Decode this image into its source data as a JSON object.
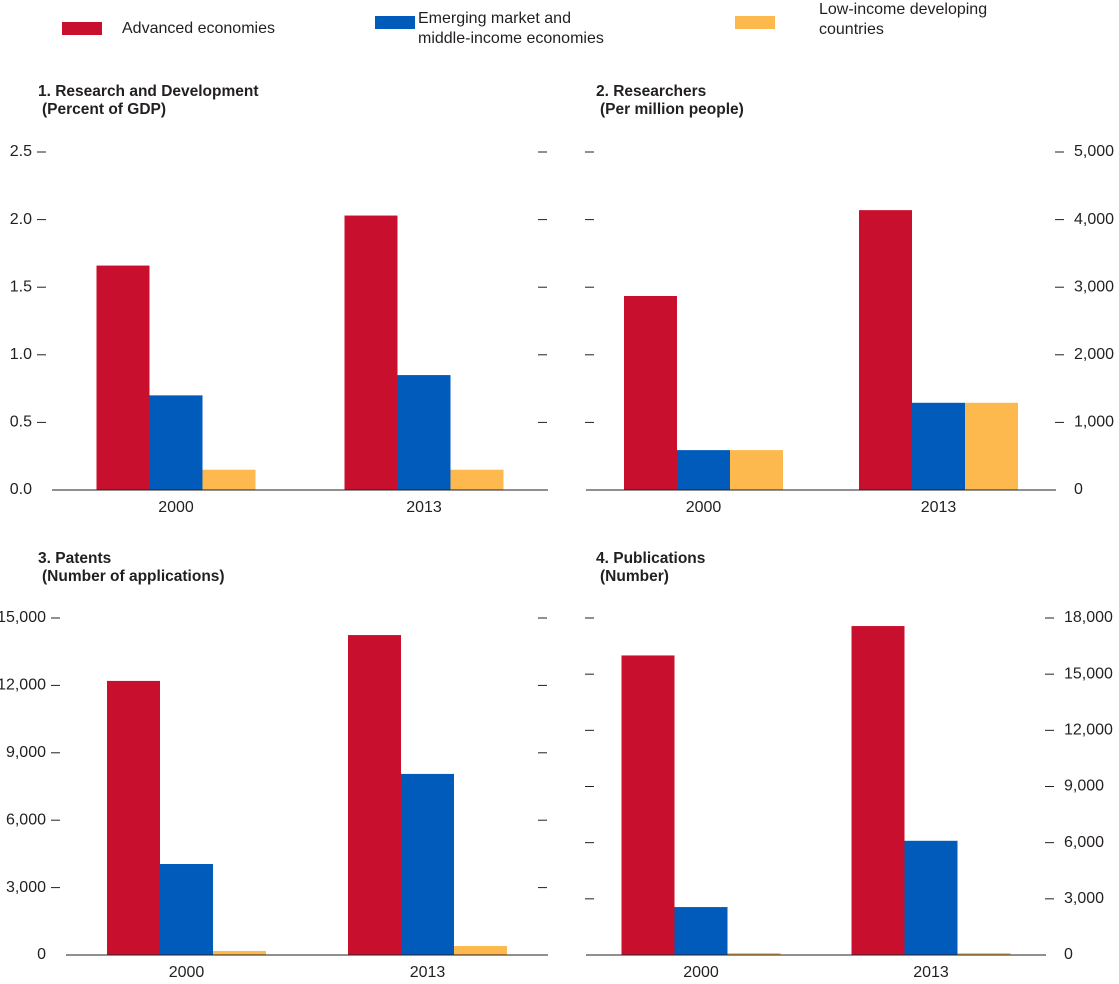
{
  "legend": {
    "series": [
      {
        "name": "Advanced economies",
        "color": "#c8102e"
      },
      {
        "name": "Emerging market and middle-income economies",
        "color": "#005bbb"
      },
      {
        "name": "Low-income developing countries",
        "color": "#fdb94e"
      }
    ]
  },
  "chart_data": [
    {
      "type": "bar",
      "title": "1. Research and Development",
      "subtitle": "(Percent of GDP)",
      "categories": [
        "2000",
        "2013"
      ],
      "yaxis_side": "left",
      "series": [
        {
          "values": [
            1.66,
            2.03
          ]
        },
        {
          "values": [
            0.7,
            0.85
          ]
        },
        {
          "values": [
            0.15,
            0.15
          ]
        }
      ],
      "ylim": [
        0,
        2.5
      ],
      "yticks": [
        {
          "value": 0,
          "label": "0.0"
        },
        0.5,
        {
          "value": 1,
          "label": "1.0"
        },
        1.5,
        {
          "value": 2,
          "label": "2.0"
        },
        2.5
      ]
    },
    {
      "type": "bar",
      "title": "2. Researchers",
      "subtitle": "(Per million people)",
      "categories": [
        "2000",
        "2013"
      ],
      "yaxis_side": "right",
      "series": [
        {
          "values": [
            2870,
            4140
          ]
        },
        {
          "values": [
            590,
            1290
          ]
        },
        {
          "values": [
            590,
            1290
          ]
        }
      ],
      "ylim": [
        0,
        5000
      ],
      "yticks": [
        0,
        {
          "value": 1000,
          "label": "1,000"
        },
        {
          "value": 2000,
          "label": "2,000"
        },
        {
          "value": 3000,
          "label": "3,000"
        },
        {
          "value": 4000,
          "label": "4,000"
        },
        {
          "value": 5000,
          "label": "5,000"
        }
      ]
    },
    {
      "type": "bar",
      "title": "3. Patents",
      "subtitle": "(Number of applications)",
      "categories": [
        "2000",
        "2013"
      ],
      "yaxis_side": "left",
      "series": [
        {
          "values": [
            12200,
            14240
          ]
        },
        {
          "values": [
            4050,
            8060
          ]
        },
        {
          "values": [
            180,
            400
          ]
        }
      ],
      "ylim": [
        0,
        15000
      ],
      "yticks": [
        0,
        {
          "value": 3000,
          "label": "3,000"
        },
        {
          "value": 6000,
          "label": "6,000"
        },
        {
          "value": 9000,
          "label": "9,000"
        },
        {
          "value": 12000,
          "label": "12,000"
        },
        {
          "value": 15000,
          "label": "15,000"
        }
      ]
    },
    {
      "type": "bar",
      "title": "4. Publications",
      "subtitle": "(Number)",
      "categories": [
        "2000",
        "2013"
      ],
      "yaxis_side": "right",
      "series": [
        {
          "values": [
            16000,
            17570
          ]
        },
        {
          "values": [
            2560,
            6100
          ]
        },
        {
          "values": [
            100,
            100
          ]
        }
      ],
      "ylim": [
        0,
        18000
      ],
      "yticks": [
        0,
        {
          "value": 3000,
          "label": "3,000"
        },
        {
          "value": 6000,
          "label": "6,000"
        },
        {
          "value": 9000,
          "label": "9,000"
        },
        {
          "value": 12000,
          "label": "12,000"
        },
        {
          "value": 15000,
          "label": "15,000"
        },
        {
          "value": 18000,
          "label": "18,000"
        }
      ]
    }
  ]
}
